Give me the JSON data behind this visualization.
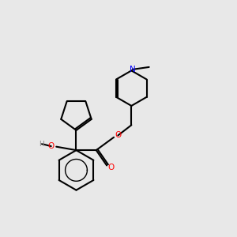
{
  "background_color": "#e8e8e8",
  "bond_color": "#000000",
  "atom_colors": {
    "O": "#ff0000",
    "N": "#0000ff",
    "H": "#888888",
    "C": "#000000"
  },
  "figsize": [
    3.0,
    3.0
  ],
  "dpi": 100
}
